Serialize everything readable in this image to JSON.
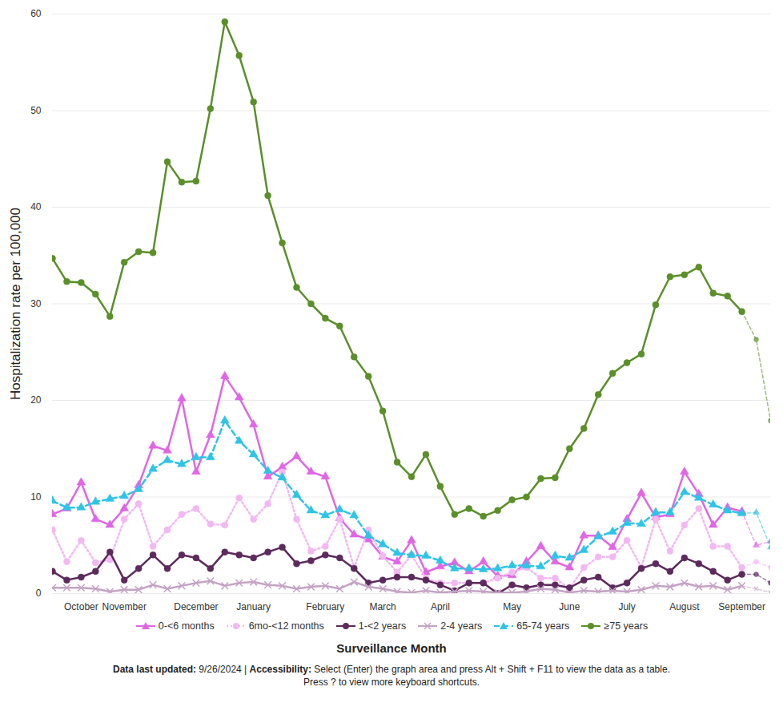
{
  "chart_data": {
    "type": "line",
    "y_label": "Hospitalization rate per 100,000",
    "x_label": "Surveillance Month",
    "categories": [
      null,
      null,
      "October",
      null,
      null,
      "November",
      null,
      null,
      null,
      null,
      "December",
      null,
      null,
      null,
      "January",
      null,
      null,
      null,
      null,
      "February",
      null,
      null,
      null,
      "March",
      null,
      null,
      null,
      "April",
      null,
      null,
      null,
      null,
      "May",
      null,
      null,
      null,
      "June",
      null,
      null,
      null,
      "July",
      null,
      null,
      null,
      "August",
      null,
      null,
      null,
      "September",
      null,
      null
    ],
    "series": [
      {
        "name": "0-<6 months",
        "color": "#e066e6",
        "marker": "triangle",
        "line_style": "solid",
        "values": [
          8.2,
          8.8,
          11.5,
          7.7,
          7.1,
          8.8,
          11.2,
          15.3,
          14.8,
          20.2,
          12.6,
          16.4,
          22.5,
          20.3,
          17.5,
          12.1,
          13.1,
          14.2,
          12.6,
          12.1,
          7.8,
          6.1,
          5.6,
          3.8,
          3.3,
          5.5,
          2.2,
          2.8,
          3.2,
          2.3,
          3.3,
          1.8,
          1.9,
          3.3,
          4.9,
          3.3,
          2.7,
          6.0,
          6.0,
          4.8,
          7.7,
          10.4,
          7.9,
          8.2,
          12.6,
          10.3,
          7.1,
          8.9,
          8.5,
          5.0,
          5.4
        ]
      },
      {
        "name": "6mo-<12 months",
        "color": "#f2b8f2",
        "marker": "circle",
        "line_style": "dotted",
        "values": [
          6.6,
          3.3,
          5.5,
          3.2,
          3.5,
          7.7,
          9.3,
          4.9,
          6.6,
          8.2,
          8.8,
          7.2,
          7.1,
          9.9,
          7.7,
          9.3,
          12.6,
          7.7,
          4.4,
          4.9,
          7.7,
          2.7,
          6.6,
          3.9,
          2.2,
          4.0,
          1.6,
          1.1,
          1.1,
          1.1,
          1.1,
          1.6,
          2.2,
          2.7,
          1.6,
          1.6,
          0.5,
          2.7,
          3.8,
          3.8,
          5.5,
          2.7,
          7.7,
          4.4,
          7.1,
          8.8,
          4.9,
          4.9,
          2.7,
          3.3,
          2.7
        ]
      },
      {
        "name": "1-<2 years",
        "color": "#5c2a5c",
        "marker": "circle",
        "line_style": "solid",
        "values": [
          2.3,
          1.4,
          1.7,
          2.3,
          4.3,
          1.4,
          2.6,
          4.0,
          2.6,
          4.0,
          3.7,
          2.6,
          4.3,
          4.0,
          3.7,
          4.3,
          4.8,
          3.1,
          3.4,
          4.0,
          3.7,
          2.6,
          1.1,
          1.4,
          1.7,
          1.7,
          1.4,
          0.9,
          0.3,
          1.1,
          1.1,
          0.0,
          0.9,
          0.6,
          0.9,
          0.9,
          0.6,
          1.4,
          1.7,
          0.6,
          1.1,
          2.6,
          3.1,
          2.3,
          3.7,
          3.1,
          2.3,
          1.4,
          2.0,
          2.0,
          1.1
        ]
      },
      {
        "name": "2-4 years",
        "color": "#c4a3c4",
        "marker": "x",
        "line_style": "solid",
        "values": [
          0.6,
          0.6,
          0.6,
          0.5,
          0.2,
          0.4,
          0.4,
          0.9,
          0.5,
          0.8,
          1.1,
          1.3,
          0.8,
          1.1,
          1.2,
          0.9,
          0.8,
          0.5,
          0.7,
          0.8,
          0.5,
          1.2,
          0.7,
          0.5,
          0.2,
          0.1,
          0.3,
          0.1,
          0.2,
          0.3,
          0.2,
          0.1,
          0.1,
          0.2,
          0.5,
          0.4,
          0.1,
          0.3,
          0.2,
          0.3,
          0.2,
          0.4,
          0.8,
          0.7,
          1.1,
          0.7,
          0.8,
          0.4,
          0.8,
          0.5,
          0.1
        ]
      },
      {
        "name": "65-74 years",
        "color": "#2ec4e6",
        "marker": "triangle",
        "line_style": "dashed",
        "values": [
          9.6,
          8.9,
          8.9,
          9.5,
          9.8,
          10.1,
          10.8,
          12.9,
          13.8,
          13.4,
          14.1,
          14.1,
          17.9,
          15.8,
          14.4,
          12.7,
          12.0,
          10.2,
          8.6,
          8.1,
          8.7,
          8.1,
          6.0,
          5.1,
          4.2,
          4.0,
          3.9,
          3.4,
          2.6,
          2.6,
          2.5,
          2.6,
          2.9,
          2.9,
          2.8,
          3.9,
          3.7,
          4.5,
          5.9,
          6.4,
          7.3,
          7.2,
          8.4,
          8.4,
          10.5,
          9.9,
          9.2,
          8.6,
          8.3,
          8.4,
          4.8
        ]
      },
      {
        "name": "≥75 years",
        "color": "#5a8f29",
        "marker": "circle",
        "line_style": "solid",
        "values": [
          34.7,
          32.3,
          32.2,
          31,
          28.7,
          34.3,
          35.4,
          35.3,
          44.7,
          42.6,
          42.7,
          50.2,
          59.2,
          55.7,
          50.9,
          41.2,
          36.3,
          31.7,
          30,
          28.5,
          27.7,
          24.5,
          22.5,
          18.9,
          13.6,
          12.1,
          14.4,
          11.1,
          8.2,
          8.8,
          8,
          8.6,
          9.7,
          10,
          11.9,
          12,
          15,
          17.1,
          20.6,
          22.8,
          23.9,
          24.8,
          29.9,
          32.8,
          33,
          33.8,
          31.1,
          30.8,
          29.2,
          26.3,
          17.9
        ]
      }
    ],
    "ylim": [
      0,
      60
    ],
    "yticks": [
      0,
      10,
      20,
      30,
      40,
      50,
      60
    ],
    "grid": true,
    "legend": "bottom",
    "footnote": {
      "updated_label": "Data last updated:",
      "updated": "9/26/2024",
      "separator": "|",
      "accessibility_label": "Accessibility:",
      "accessibility": "Select (Enter) the graph area and press Alt + Shift + F11 to view the data as a table.",
      "shortcuts": "Press ? to view more keyboard shortcuts."
    }
  }
}
